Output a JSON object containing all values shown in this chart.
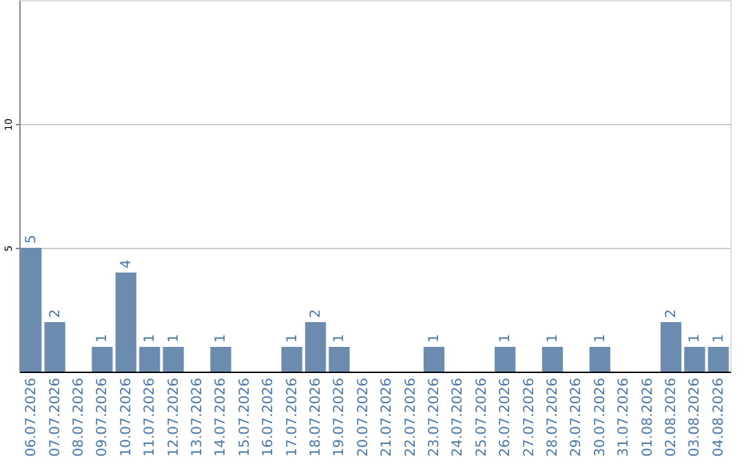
{
  "chart_data": {
    "type": "bar",
    "categories": [
      "06.07.2026",
      "07.07.2026",
      "08.07.2026",
      "09.07.2026",
      "10.07.2026",
      "11.07.2026",
      "12.07.2026",
      "13.07.2026",
      "14.07.2026",
      "15.07.2026",
      "16.07.2026",
      "17.07.2026",
      "18.07.2026",
      "19.07.2026",
      "20.07.2026",
      "21.07.2026",
      "22.07.2026",
      "23.07.2026",
      "24.07.2026",
      "25.07.2026",
      "26.07.2026",
      "27.07.2026",
      "28.07.2026",
      "29.07.2026",
      "30.07.2026",
      "31.07.2026",
      "01.08.2026",
      "02.08.2026",
      "03.08.2026",
      "04.08.2026"
    ],
    "values": [
      5,
      2,
      null,
      1,
      4,
      1,
      1,
      null,
      1,
      null,
      null,
      1,
      2,
      1,
      null,
      null,
      null,
      1,
      null,
      null,
      1,
      null,
      1,
      null,
      1,
      null,
      null,
      2,
      1,
      1
    ],
    "color": "#6b8cae",
    "ylim": [
      0,
      15
    ],
    "yticks": [
      5,
      10
    ],
    "grid": "y",
    "data_labels": true
  }
}
